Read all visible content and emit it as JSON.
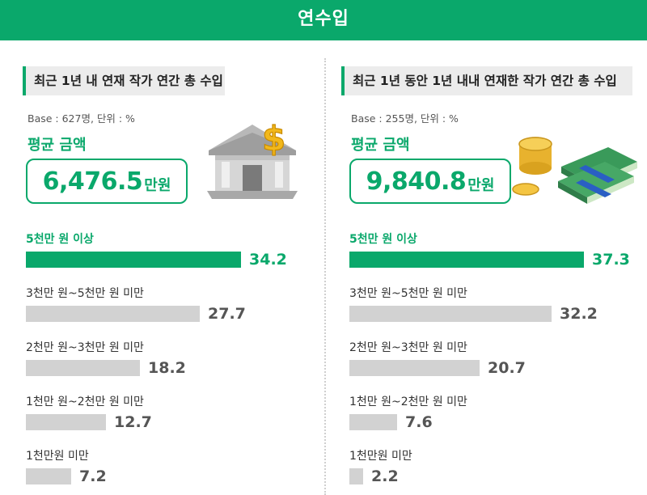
{
  "header": {
    "title": "연수입"
  },
  "chart_data": [
    {
      "type": "bar",
      "title": "최근 1년 내 연재 작가 연간 총 수입",
      "base_note": "Base : 627명, 단위 : %",
      "average_label": "평균 금액",
      "average_value": "6,476.5",
      "average_unit": "만원",
      "categories": [
        "5천만 원 이상",
        "3천만 원~5천만 원 미만",
        "2천만 원~3천만 원 미만",
        "1천만 원~2천만 원 미만",
        "1천만원 미만"
      ],
      "values": [
        34.2,
        27.7,
        18.2,
        12.7,
        7.2
      ],
      "highlight_color": "#0aa86b",
      "bar_color": "#d2d2d2"
    },
    {
      "type": "bar",
      "title": "최근 1년 동안 1년 내내 연재한 작가 연간 총 수입",
      "base_note": "Base : 255명, 단위 : %",
      "average_label": "평균 금액",
      "average_value": "9,840.8",
      "average_unit": "만원",
      "categories": [
        "5천만 원 이상",
        "3천만 원~5천만 원 미만",
        "2천만 원~3천만 원 미만",
        "1천만 원~2천만 원 미만",
        "1천만원 미만"
      ],
      "values": [
        37.3,
        32.2,
        20.7,
        7.6,
        2.2
      ],
      "highlight_color": "#0aa86b",
      "bar_color": "#d2d2d2"
    }
  ],
  "icons": {
    "left": "bank-dollar-icon",
    "right": "money-stack-icon"
  }
}
